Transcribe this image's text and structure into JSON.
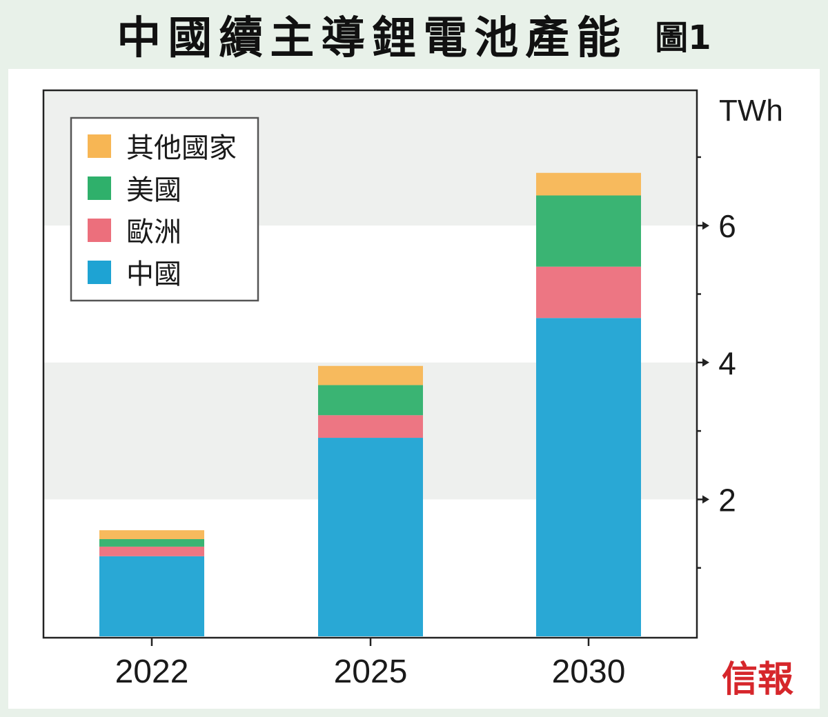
{
  "header": {
    "title": "中國續主導鋰電池產能",
    "figure_label": "圖1"
  },
  "brand": {
    "text": "信報",
    "color": "#d6262b"
  },
  "chart_data": {
    "type": "bar",
    "stacked": true,
    "title": "中國續主導鋰電池產能",
    "ylabel": "TWh",
    "xlabel": "",
    "ylim": [
      0,
      8
    ],
    "yticks": [
      2,
      4,
      6
    ],
    "y_minor_ticks": [
      1,
      3,
      5,
      7
    ],
    "y_axis_position": "right",
    "grid": "alternating horizontal bands",
    "legend_position": "top-left",
    "categories": [
      "2022",
      "2025",
      "2030"
    ],
    "series": [
      {
        "name": "中國",
        "color": "#1ea3d3",
        "values": [
          1.17,
          2.9,
          4.65
        ]
      },
      {
        "name": "歐洲",
        "color": "#ec6f7c",
        "values": [
          0.14,
          0.33,
          0.75
        ]
      },
      {
        "name": "美國",
        "color": "#2fb06b",
        "values": [
          0.11,
          0.44,
          1.04
        ]
      },
      {
        "name": "其他國家",
        "color": "#f7b654",
        "values": [
          0.13,
          0.28,
          0.33
        ]
      }
    ],
    "legend_order": [
      "其他國家",
      "美國",
      "歐洲",
      "中國"
    ]
  }
}
